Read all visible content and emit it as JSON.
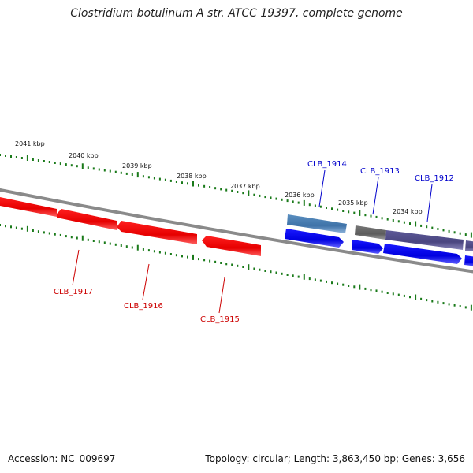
{
  "title": "Clostridium botulinum A str. ATCC 19397, complete genome",
  "footer": {
    "accession": "Accession: NC_009697",
    "summary": "Topology: circular; Length: 3,863,450 bp; Genes: 3,656"
  },
  "colors": {
    "ruler": "#1a7a1a",
    "backbone": "#808080",
    "reverse_gene": "#ff0000",
    "reverse_label": "#cc0000",
    "forward_gene": "#0000ff",
    "forward_label": "#0000cc",
    "steel_gene": "#4a7fb0",
    "slate_gene": "#54508a",
    "gray_gene": "#6a6a6a"
  },
  "ruler_labels": [
    "2041 kbp",
    "2040 kbp",
    "2039 kbp",
    "2038 kbp",
    "2037 kbp",
    "2036 kbp",
    "2035 kbp",
    "2034 kbp"
  ],
  "genes": [
    {
      "label": "CLB_1917",
      "strand": "reverse"
    },
    {
      "label": "CLB_1916",
      "strand": "reverse"
    },
    {
      "label": "CLB_1915",
      "strand": "reverse"
    },
    {
      "label": "CLB_1914",
      "strand": "forward"
    },
    {
      "label": "CLB_1913",
      "strand": "forward"
    },
    {
      "label": "CLB_1912",
      "strand": "forward"
    }
  ]
}
